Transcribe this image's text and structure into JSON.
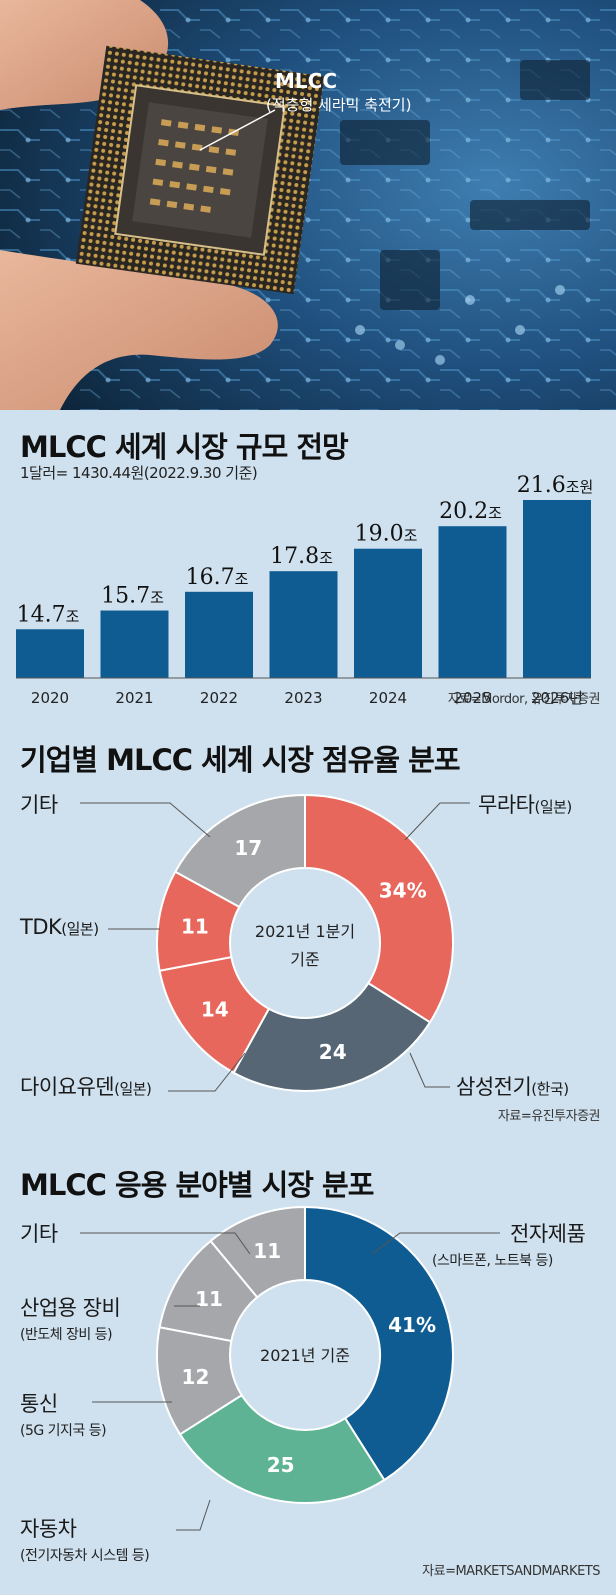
{
  "photo": {
    "label_main": "MLCC",
    "label_sub": "(적층형 세라믹 축전기)"
  },
  "chart_data": [
    {
      "type": "bar",
      "title": "MLCC 세계 시장 규모 전망",
      "subtitle": "1달러= 1430.44원(2022.9.30 기준)",
      "categories": [
        "2020",
        "2021",
        "2022",
        "2023",
        "2024",
        "2025",
        "2026년"
      ],
      "values": [
        14.7,
        15.7,
        16.7,
        17.8,
        19.0,
        20.2,
        21.6
      ],
      "value_labels": [
        "14.7",
        "15.7",
        "16.7",
        "17.8",
        "19.0",
        "20.2",
        "21.6"
      ],
      "unit_labels": [
        "조",
        "조",
        "조",
        "조",
        "조",
        "조",
        "조원"
      ],
      "ylim": [
        13.7,
        21.6
      ],
      "source": "자료=Mordor, 유진투자증권",
      "color": "#0f5c93"
    },
    {
      "type": "pie",
      "title": "기업별 MLCC 세계 시장 점유율 분포",
      "center_label_1": "2021년 1분기",
      "center_label_2": "기준",
      "slices": [
        {
          "name": "무라타",
          "note": "(일본)",
          "value": 34,
          "label": "34%",
          "color": "#e8675c"
        },
        {
          "name": "삼성전기",
          "note": "(한국)",
          "value": 24,
          "label": "24",
          "color": "#566674"
        },
        {
          "name": "다이요유덴",
          "note": "(일본)",
          "value": 14,
          "label": "14",
          "color": "#e8675c"
        },
        {
          "name": "TDK",
          "note": "(일본)",
          "value": 11,
          "label": "11",
          "color": "#e8675c"
        },
        {
          "name": "기타",
          "note": "",
          "value": 17,
          "label": "17",
          "color": "#a5a7aa"
        }
      ],
      "source": "자료=유진투자증권"
    },
    {
      "type": "pie",
      "title": "MLCC 응용 분야별 시장 분포",
      "center_label_1": "2021년 기준",
      "slices": [
        {
          "name": "전자제품",
          "note": "(스마트폰, 노트북 등)",
          "value": 41,
          "label": "41%",
          "color": "#0f5c93"
        },
        {
          "name": "자동차",
          "note": "(전기자동차 시스템 등)",
          "value": 25,
          "label": "25",
          "color": "#5db393"
        },
        {
          "name": "통신",
          "note": "(5G 기지국 등)",
          "value": 12,
          "label": "12",
          "color": "#a5a7aa"
        },
        {
          "name": "산업용 장비",
          "note": "(반도체 장비 등)",
          "value": 11,
          "label": "11",
          "color": "#a5a7aa"
        },
        {
          "name": "기타",
          "note": "",
          "value": 11,
          "label": "11",
          "color": "#a5a7aa"
        }
      ],
      "source": "자료=MARKETSANDMARKETS"
    }
  ]
}
